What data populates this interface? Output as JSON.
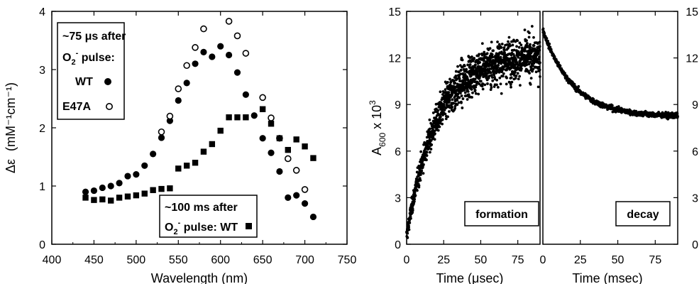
{
  "chart_data": [
    {
      "type": "scatter",
      "title": "",
      "xlabel": "Wavelength (nm)",
      "ylabel_symbol": "Δε",
      "ylabel_units": "(mM⁻¹cm⁻¹)",
      "xlim": [
        400,
        750
      ],
      "ylim": [
        0,
        4
      ],
      "xticks": [
        "400",
        "450",
        "500",
        "550",
        "600",
        "650",
        "700",
        "750"
      ],
      "yticks": [
        "0",
        "1",
        "2",
        "3",
        "4"
      ],
      "legend_upper": {
        "line1": "~75 μs after",
        "line2_prefix": "O",
        "line2_sub": "2",
        "line2_sup": "-",
        "line2_suffix": " pulse:",
        "entries": [
          "WT",
          "E47A"
        ]
      },
      "legend_lower": {
        "line1": "~100 ms after",
        "line2_prefix": "O",
        "line2_sub": "2",
        "line2_sup": "-",
        "line2_suffix": " pulse:  WT"
      },
      "series": [
        {
          "name": "WT",
          "marker": "filled-circle",
          "points": [
            [
              440,
              0.9
            ],
            [
              450,
              0.92
            ],
            [
              460,
              0.97
            ],
            [
              470,
              1.0
            ],
            [
              480,
              1.05
            ],
            [
              490,
              1.17
            ],
            [
              500,
              1.2
            ],
            [
              510,
              1.35
            ],
            [
              520,
              1.55
            ],
            [
              530,
              1.83
            ],
            [
              540,
              2.12
            ],
            [
              550,
              2.47
            ],
            [
              560,
              2.77
            ],
            [
              570,
              3.1
            ],
            [
              580,
              3.3
            ],
            [
              590,
              3.22
            ],
            [
              600,
              3.4
            ],
            [
              610,
              3.25
            ],
            [
              620,
              2.95
            ],
            [
              630,
              2.57
            ],
            [
              640,
              2.21
            ],
            [
              650,
              1.82
            ],
            [
              660,
              1.57
            ],
            [
              670,
              1.25
            ],
            [
              680,
              0.8
            ],
            [
              690,
              0.84
            ],
            [
              700,
              0.7
            ],
            [
              710,
              0.47
            ]
          ]
        },
        {
          "name": "E47A",
          "marker": "open-circle",
          "points": [
            [
              530,
              1.93
            ],
            [
              540,
              2.2
            ],
            [
              550,
              2.67
            ],
            [
              560,
              3.07
            ],
            [
              570,
              3.38
            ],
            [
              580,
              3.7
            ],
            [
              610,
              3.83
            ],
            [
              620,
              3.58
            ],
            [
              630,
              3.28
            ],
            [
              650,
              2.52
            ],
            [
              660,
              2.17
            ],
            [
              670,
              1.82
            ],
            [
              680,
              1.47
            ],
            [
              690,
              1.27
            ],
            [
              700,
              0.94
            ]
          ]
        },
        {
          "name": "WT (~100 ms)",
          "marker": "filled-square",
          "points": [
            [
              440,
              0.8
            ],
            [
              450,
              0.76
            ],
            [
              460,
              0.77
            ],
            [
              470,
              0.75
            ],
            [
              480,
              0.8
            ],
            [
              490,
              0.82
            ],
            [
              500,
              0.84
            ],
            [
              510,
              0.87
            ],
            [
              520,
              0.93
            ],
            [
              530,
              0.95
            ],
            [
              540,
              0.96
            ],
            [
              550,
              1.3
            ],
            [
              560,
              1.35
            ],
            [
              570,
              1.4
            ],
            [
              580,
              1.59
            ],
            [
              590,
              1.72
            ],
            [
              600,
              1.95
            ],
            [
              610,
              2.18
            ],
            [
              620,
              2.18
            ],
            [
              630,
              2.18
            ],
            [
              650,
              2.32
            ],
            [
              660,
              2.07
            ],
            [
              670,
              1.82
            ],
            [
              680,
              1.62
            ],
            [
              690,
              1.8
            ],
            [
              700,
              1.68
            ],
            [
              710,
              1.48
            ]
          ]
        }
      ]
    },
    {
      "type": "scatter",
      "title": "",
      "ylabel_main": "A",
      "ylabel_sub": "600",
      "ylabel_mult": " x 10",
      "ylabel_sup": "3",
      "ylim": [
        0,
        15
      ],
      "yticks": [
        "0",
        "3",
        "6",
        "9",
        "12",
        "15"
      ],
      "panels": [
        {
          "label": "formation",
          "xlabel": "Time (μsec)",
          "xlim": [
            0,
            90
          ],
          "xticks": [
            "0",
            "25",
            "50",
            "75"
          ],
          "model": {
            "shape": "rise",
            "baseline": 0.5,
            "amplitude": 11.7,
            "rate_per_unit": 0.05,
            "noise": 0.9,
            "n_points": 1400
          }
        },
        {
          "label": "decay",
          "xlabel": "Time (msec)",
          "xlim": [
            0,
            90
          ],
          "xticks": [
            "0",
            "25",
            "50",
            "75"
          ],
          "model": {
            "shape": "decay",
            "start": 13.8,
            "end": 8.2,
            "rate_per_unit": 0.05,
            "noise": 0.12,
            "n_points": 700
          }
        }
      ]
    }
  ]
}
